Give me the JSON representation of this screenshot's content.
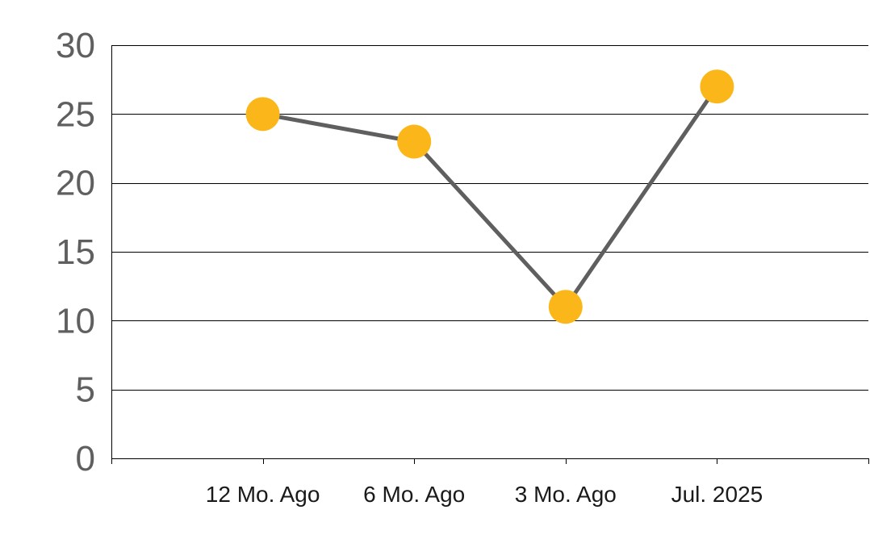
{
  "chart_data": {
    "type": "line",
    "title": "",
    "xlabel": "",
    "ylabel": "",
    "categories": [
      "12 Mo. Ago",
      "6 Mo. Ago",
      "3 Mo. Ago",
      "Jul. 2025"
    ],
    "series": [
      {
        "values": [
          25,
          23,
          11,
          27
        ]
      }
    ],
    "ylim": [
      0,
      30
    ],
    "yticks": [
      0,
      5,
      10,
      15,
      20,
      25,
      30
    ],
    "grid": true,
    "legend": "none",
    "colors": {
      "line": "#5f5f5f",
      "marker": "#fbb719",
      "axis_text": "#5f5f5f",
      "category_text": "#1a1a1a"
    }
  }
}
